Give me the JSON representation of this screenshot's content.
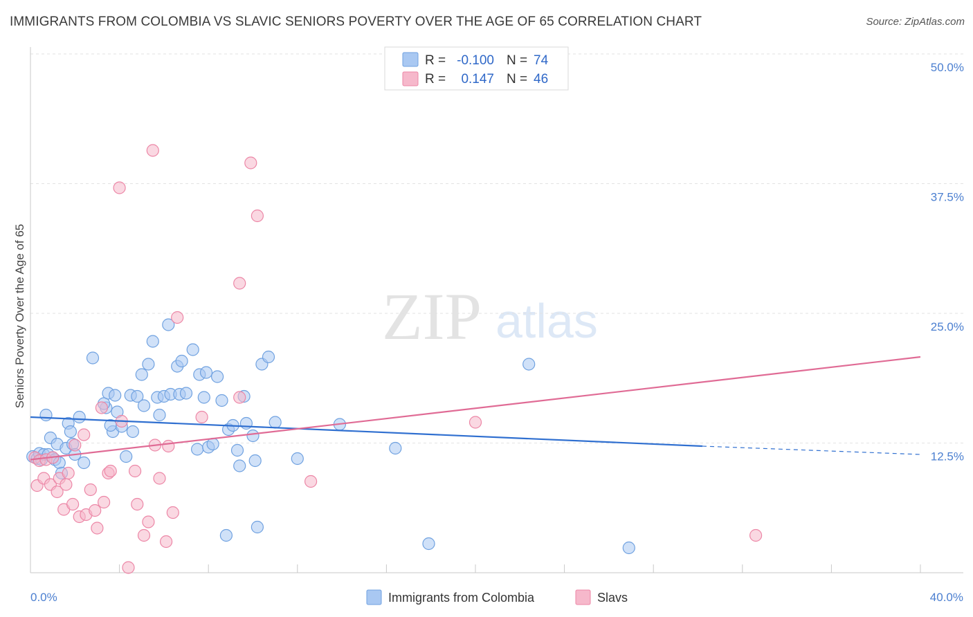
{
  "header": {
    "title": "IMMIGRANTS FROM COLOMBIA VS SLAVIC SENIORS POVERTY OVER THE AGE OF 65 CORRELATION CHART",
    "source": "Source: ZipAtlas.com"
  },
  "watermark": {
    "zip": "ZIP",
    "atlas": "atlas"
  },
  "legend_top": {
    "rows": [
      {
        "r_label": "R =",
        "r_value": "-0.100",
        "n_label": "N =",
        "n_value": "74",
        "color": "#a9c8f2"
      },
      {
        "r_label": "R =",
        "r_value": "0.147",
        "n_label": "N =",
        "n_value": "46",
        "color": "#f6b8cb"
      }
    ]
  },
  "legend_bottom": [
    {
      "label": "Immigrants from Colombia",
      "color": "#a9c8f2"
    },
    {
      "label": "Slavs",
      "color": "#f6b8cb"
    }
  ],
  "chart_data": {
    "type": "scatter",
    "xlabel": "",
    "ylabel": "Seniors Poverty Over the Age of 65",
    "xlim": [
      0,
      40
    ],
    "ylim": [
      0,
      50
    ],
    "x_tick_labels": {
      "min": "0.0%",
      "max": "40.0%"
    },
    "y_ticks": [
      {
        "value": 12.5,
        "label": "12.5%"
      },
      {
        "value": 25.0,
        "label": "25.0%"
      },
      {
        "value": 37.5,
        "label": "37.5%"
      },
      {
        "value": 50.0,
        "label": "50.0%"
      }
    ],
    "grid": true,
    "series": [
      {
        "name": "Immigrants from Colombia",
        "color": "#6fa1e0",
        "fill": "#a9c8f2",
        "trend": {
          "x0": 0,
          "y0": 15.0,
          "x1": 30.2,
          "y1": 12.2,
          "dashed_to": 40,
          "dashed_y": 11.4
        },
        "points": [
          [
            0.1,
            11.2
          ],
          [
            0.3,
            11.0
          ],
          [
            0.4,
            11.5
          ],
          [
            0.5,
            10.9
          ],
          [
            0.6,
            11.4
          ],
          [
            0.7,
            15.2
          ],
          [
            0.8,
            11.4
          ],
          [
            0.9,
            13.0
          ],
          [
            1.0,
            11.1
          ],
          [
            1.1,
            10.9
          ],
          [
            1.2,
            12.4
          ],
          [
            1.3,
            10.6
          ],
          [
            1.4,
            9.6
          ],
          [
            1.6,
            12.0
          ],
          [
            1.7,
            14.4
          ],
          [
            1.8,
            13.6
          ],
          [
            1.9,
            12.4
          ],
          [
            2.0,
            11.4
          ],
          [
            2.8,
            20.7
          ],
          [
            2.2,
            15.0
          ],
          [
            2.4,
            10.6
          ],
          [
            3.4,
            15.9
          ],
          [
            3.3,
            16.3
          ],
          [
            3.5,
            17.3
          ],
          [
            3.7,
            13.6
          ],
          [
            3.8,
            17.1
          ],
          [
            3.9,
            15.5
          ],
          [
            4.1,
            14.1
          ],
          [
            4.3,
            11.2
          ],
          [
            4.5,
            17.1
          ],
          [
            4.6,
            13.6
          ],
          [
            4.8,
            17.0
          ],
          [
            5.0,
            19.1
          ],
          [
            5.1,
            16.1
          ],
          [
            5.3,
            20.1
          ],
          [
            5.5,
            22.3
          ],
          [
            5.7,
            16.9
          ],
          [
            5.8,
            15.2
          ],
          [
            6.0,
            17.0
          ],
          [
            6.2,
            23.9
          ],
          [
            6.3,
            17.2
          ],
          [
            6.6,
            19.9
          ],
          [
            6.7,
            17.2
          ],
          [
            6.8,
            20.4
          ],
          [
            7.0,
            17.3
          ],
          [
            7.3,
            21.5
          ],
          [
            7.5,
            11.9
          ],
          [
            7.6,
            19.1
          ],
          [
            7.8,
            16.9
          ],
          [
            7.9,
            19.3
          ],
          [
            8.0,
            12.1
          ],
          [
            8.2,
            12.4
          ],
          [
            8.4,
            18.9
          ],
          [
            8.6,
            16.6
          ],
          [
            8.8,
            3.6
          ],
          [
            8.9,
            13.8
          ],
          [
            9.1,
            14.2
          ],
          [
            9.3,
            11.8
          ],
          [
            9.4,
            10.3
          ],
          [
            9.6,
            17.0
          ],
          [
            9.7,
            14.4
          ],
          [
            10.0,
            13.2
          ],
          [
            10.1,
            10.8
          ],
          [
            10.2,
            4.4
          ],
          [
            10.4,
            20.1
          ],
          [
            10.7,
            20.8
          ],
          [
            11.0,
            14.5
          ],
          [
            12.0,
            11.0
          ],
          [
            13.9,
            14.3
          ],
          [
            16.4,
            12.0
          ],
          [
            17.9,
            2.8
          ],
          [
            22.4,
            20.1
          ],
          [
            26.9,
            2.4
          ],
          [
            3.6,
            14.2
          ]
        ]
      },
      {
        "name": "Slavs",
        "color": "#ec86a6",
        "fill": "#f6b8cb",
        "trend": {
          "x0": 0,
          "y0": 10.9,
          "x1": 40,
          "y1": 20.8
        },
        "points": [
          [
            0.2,
            11.1
          ],
          [
            0.3,
            8.4
          ],
          [
            0.4,
            10.8
          ],
          [
            0.6,
            9.1
          ],
          [
            0.7,
            10.9
          ],
          [
            0.9,
            8.5
          ],
          [
            1.0,
            11.1
          ],
          [
            1.2,
            7.8
          ],
          [
            1.3,
            9.1
          ],
          [
            1.5,
            6.1
          ],
          [
            1.6,
            8.5
          ],
          [
            1.7,
            9.6
          ],
          [
            1.9,
            6.6
          ],
          [
            2.0,
            12.3
          ],
          [
            2.2,
            5.4
          ],
          [
            2.4,
            13.3
          ],
          [
            2.5,
            5.6
          ],
          [
            2.7,
            8.0
          ],
          [
            2.9,
            6.0
          ],
          [
            3.0,
            4.3
          ],
          [
            3.2,
            15.9
          ],
          [
            3.3,
            6.8
          ],
          [
            3.5,
            9.6
          ],
          [
            3.6,
            9.8
          ],
          [
            4.1,
            14.6
          ],
          [
            4.0,
            37.1
          ],
          [
            4.4,
            0.5
          ],
          [
            4.7,
            9.8
          ],
          [
            4.8,
            6.6
          ],
          [
            5.1,
            3.6
          ],
          [
            5.3,
            4.9
          ],
          [
            5.5,
            40.7
          ],
          [
            5.6,
            12.3
          ],
          [
            5.8,
            9.1
          ],
          [
            6.1,
            3.0
          ],
          [
            6.2,
            12.2
          ],
          [
            6.4,
            5.8
          ],
          [
            6.6,
            24.6
          ],
          [
            7.7,
            15.0
          ],
          [
            9.4,
            27.9
          ],
          [
            9.4,
            16.9
          ],
          [
            9.9,
            39.5
          ],
          [
            10.2,
            34.4
          ],
          [
            12.6,
            8.8
          ],
          [
            20.0,
            14.5
          ],
          [
            32.6,
            3.6
          ]
        ]
      }
    ]
  }
}
